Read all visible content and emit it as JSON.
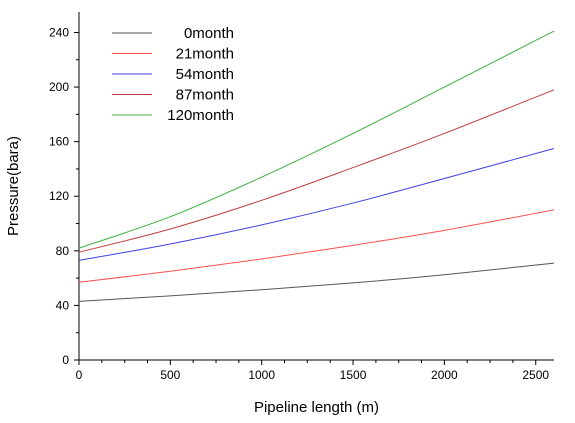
{
  "chart_data": {
    "type": "line",
    "xlabel": "Pipeline length (m)",
    "ylabel": "Pressure(bara)",
    "xlim": [
      0,
      2600
    ],
    "ylim": [
      0,
      255
    ],
    "x_ticks": [
      0,
      500,
      1000,
      1500,
      2000,
      2500
    ],
    "y_ticks": [
      0,
      40,
      80,
      120,
      160,
      200,
      240
    ],
    "grid": false,
    "legend_position": "top-left",
    "x": [
      0,
      500,
      1000,
      1500,
      2000,
      2600
    ],
    "series": [
      {
        "name": "0month",
        "color": "#555555",
        "values": [
          43,
          47,
          51.5,
          56.5,
          62.5,
          71
        ]
      },
      {
        "name": "21month",
        "color": "#ff5050",
        "values": [
          57,
          65,
          74,
          84,
          95,
          110
        ]
      },
      {
        "name": "54month",
        "color": "#4040e0",
        "values": [
          73,
          85,
          99,
          115,
          133,
          155
        ]
      },
      {
        "name": "87month",
        "color": "#c04040",
        "values": [
          79,
          96,
          117,
          141,
          166,
          198
        ]
      },
      {
        "name": "120month",
        "color": "#40b040",
        "values": [
          82,
          105,
          134,
          166,
          200,
          241
        ]
      }
    ]
  }
}
